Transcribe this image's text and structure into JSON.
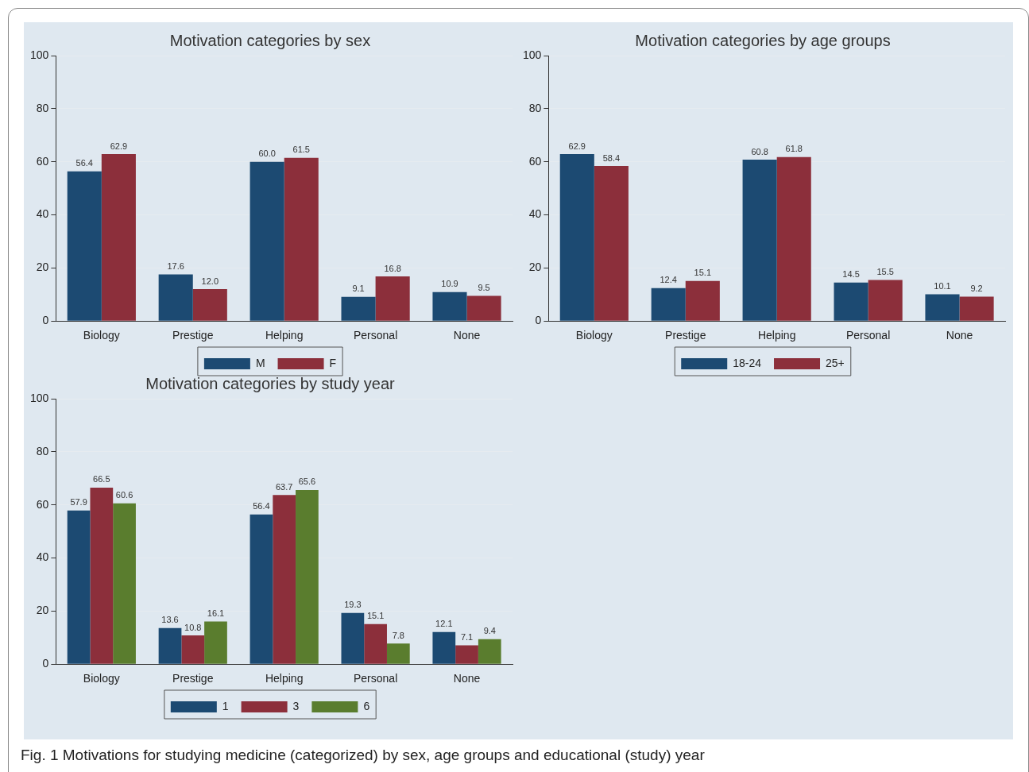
{
  "chart_data": [
    {
      "type": "bar",
      "title": "Motivation categories by sex",
      "categories": [
        "Biology",
        "Prestige",
        "Helping",
        "Personal",
        "None"
      ],
      "series": [
        {
          "name": "M",
          "color": "#1c4a72",
          "values": [
            56.4,
            17.6,
            60.0,
            9.1,
            10.9
          ],
          "value_labels": [
            "56.4",
            "17.6",
            "60.0",
            "9.1",
            "10.9"
          ]
        },
        {
          "name": "F",
          "color": "#8c2f3b",
          "values": [
            62.9,
            12.0,
            61.5,
            16.8,
            9.5
          ],
          "value_labels": [
            "62.9",
            "12.0",
            "61.5",
            "16.8",
            "9.5"
          ]
        }
      ],
      "ylim": [
        0,
        100
      ],
      "yticks": [
        0,
        20,
        40,
        60,
        80,
        100
      ],
      "grid": "y",
      "legend": "bottom"
    },
    {
      "type": "bar",
      "title": "Motivation categories by age groups",
      "categories": [
        "Biology",
        "Prestige",
        "Helping",
        "Personal",
        "None"
      ],
      "series": [
        {
          "name": "18-24",
          "color": "#1c4a72",
          "values": [
            62.9,
            12.4,
            60.8,
            14.5,
            10.1
          ],
          "value_labels": [
            "62.9",
            "12.4",
            "60.8",
            "14.5",
            "10.1"
          ]
        },
        {
          "name": "25+",
          "color": "#8c2f3b",
          "values": [
            58.4,
            15.1,
            61.8,
            15.5,
            9.2
          ],
          "value_labels": [
            "58.4",
            "15.1",
            "61.8",
            "15.5",
            "9.2"
          ]
        }
      ],
      "ylim": [
        0,
        100
      ],
      "yticks": [
        0,
        20,
        40,
        60,
        80,
        100
      ],
      "grid": "y",
      "legend": "bottom"
    },
    {
      "type": "bar",
      "title": "Motivation categories by study year",
      "categories": [
        "Biology",
        "Prestige",
        "Helping",
        "Personal",
        "None"
      ],
      "series": [
        {
          "name": "1",
          "color": "#1c4a72",
          "values": [
            57.9,
            13.6,
            56.4,
            19.3,
            12.1
          ],
          "value_labels": [
            "57.9",
            "13.6",
            "56.4",
            "19.3",
            "12.1"
          ]
        },
        {
          "name": "3",
          "color": "#8c2f3b",
          "values": [
            66.5,
            10.8,
            63.7,
            15.1,
            7.1
          ],
          "value_labels": [
            "66.5",
            "10.8",
            "63.7",
            "15.1",
            "7.1"
          ]
        },
        {
          "name": "6",
          "color": "#5a7d2e",
          "values": [
            60.6,
            16.1,
            65.6,
            7.8,
            9.4
          ],
          "value_labels": [
            "60.6",
            "16.1",
            "65.6",
            "7.8",
            "9.4"
          ]
        }
      ],
      "ylim": [
        0,
        100
      ],
      "yticks": [
        0,
        20,
        40,
        60,
        80,
        100
      ],
      "grid": "y",
      "legend": "bottom",
      "annotations": [
        "Fig. 1  Motivations for studying medicine (categorized) by sex, age groups and educational (study) year"
      ]
    }
  ]
}
